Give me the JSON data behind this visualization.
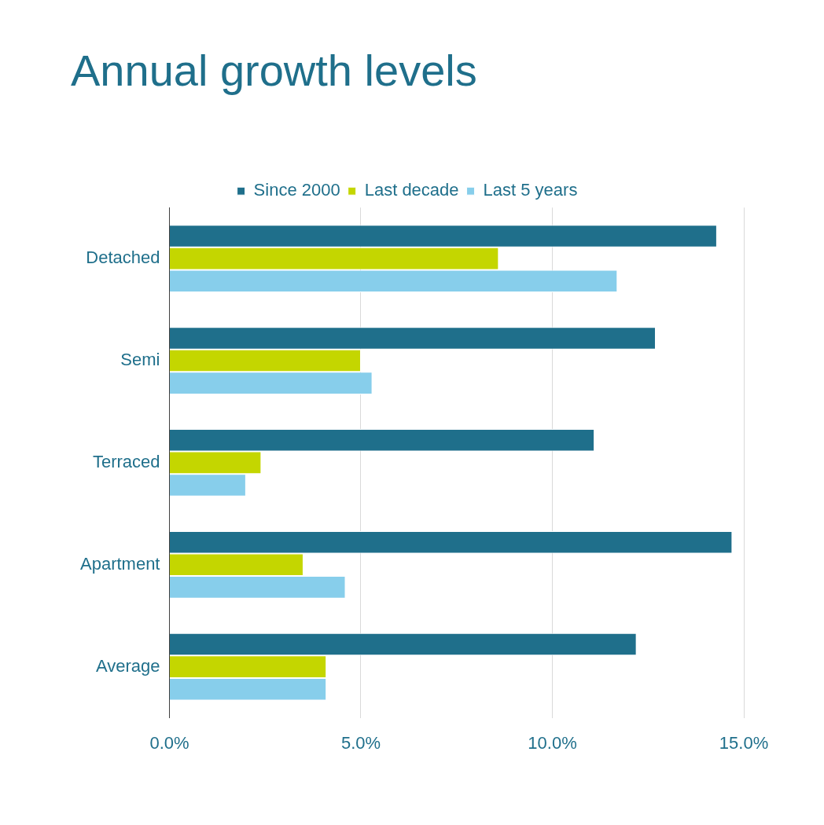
{
  "chart_data": {
    "type": "bar",
    "orientation": "horizontal",
    "title": "Annual growth levels",
    "categories": [
      "Detached",
      "Semi",
      "Terraced",
      "Apartment",
      "Average"
    ],
    "series": [
      {
        "name": "Since 2000",
        "color": "#1f6f8b",
        "values": [
          14.3,
          12.7,
          11.1,
          14.7,
          12.2
        ]
      },
      {
        "name": "Last decade",
        "color": "#c4d600",
        "values": [
          8.6,
          5.0,
          2.4,
          3.5,
          4.1
        ]
      },
      {
        "name": "Last 5 years",
        "color": "#87ceeb",
        "values": [
          11.7,
          5.3,
          2.0,
          4.6,
          4.1
        ]
      }
    ],
    "xlim": [
      0,
      15
    ],
    "xticks": [
      {
        "value": 0,
        "label": "0.0%"
      },
      {
        "value": 5,
        "label": "5.0%"
      },
      {
        "value": 10,
        "label": "10.0%"
      },
      {
        "value": 15,
        "label": "15.0%"
      }
    ],
    "grid": "x",
    "legend": "top"
  }
}
